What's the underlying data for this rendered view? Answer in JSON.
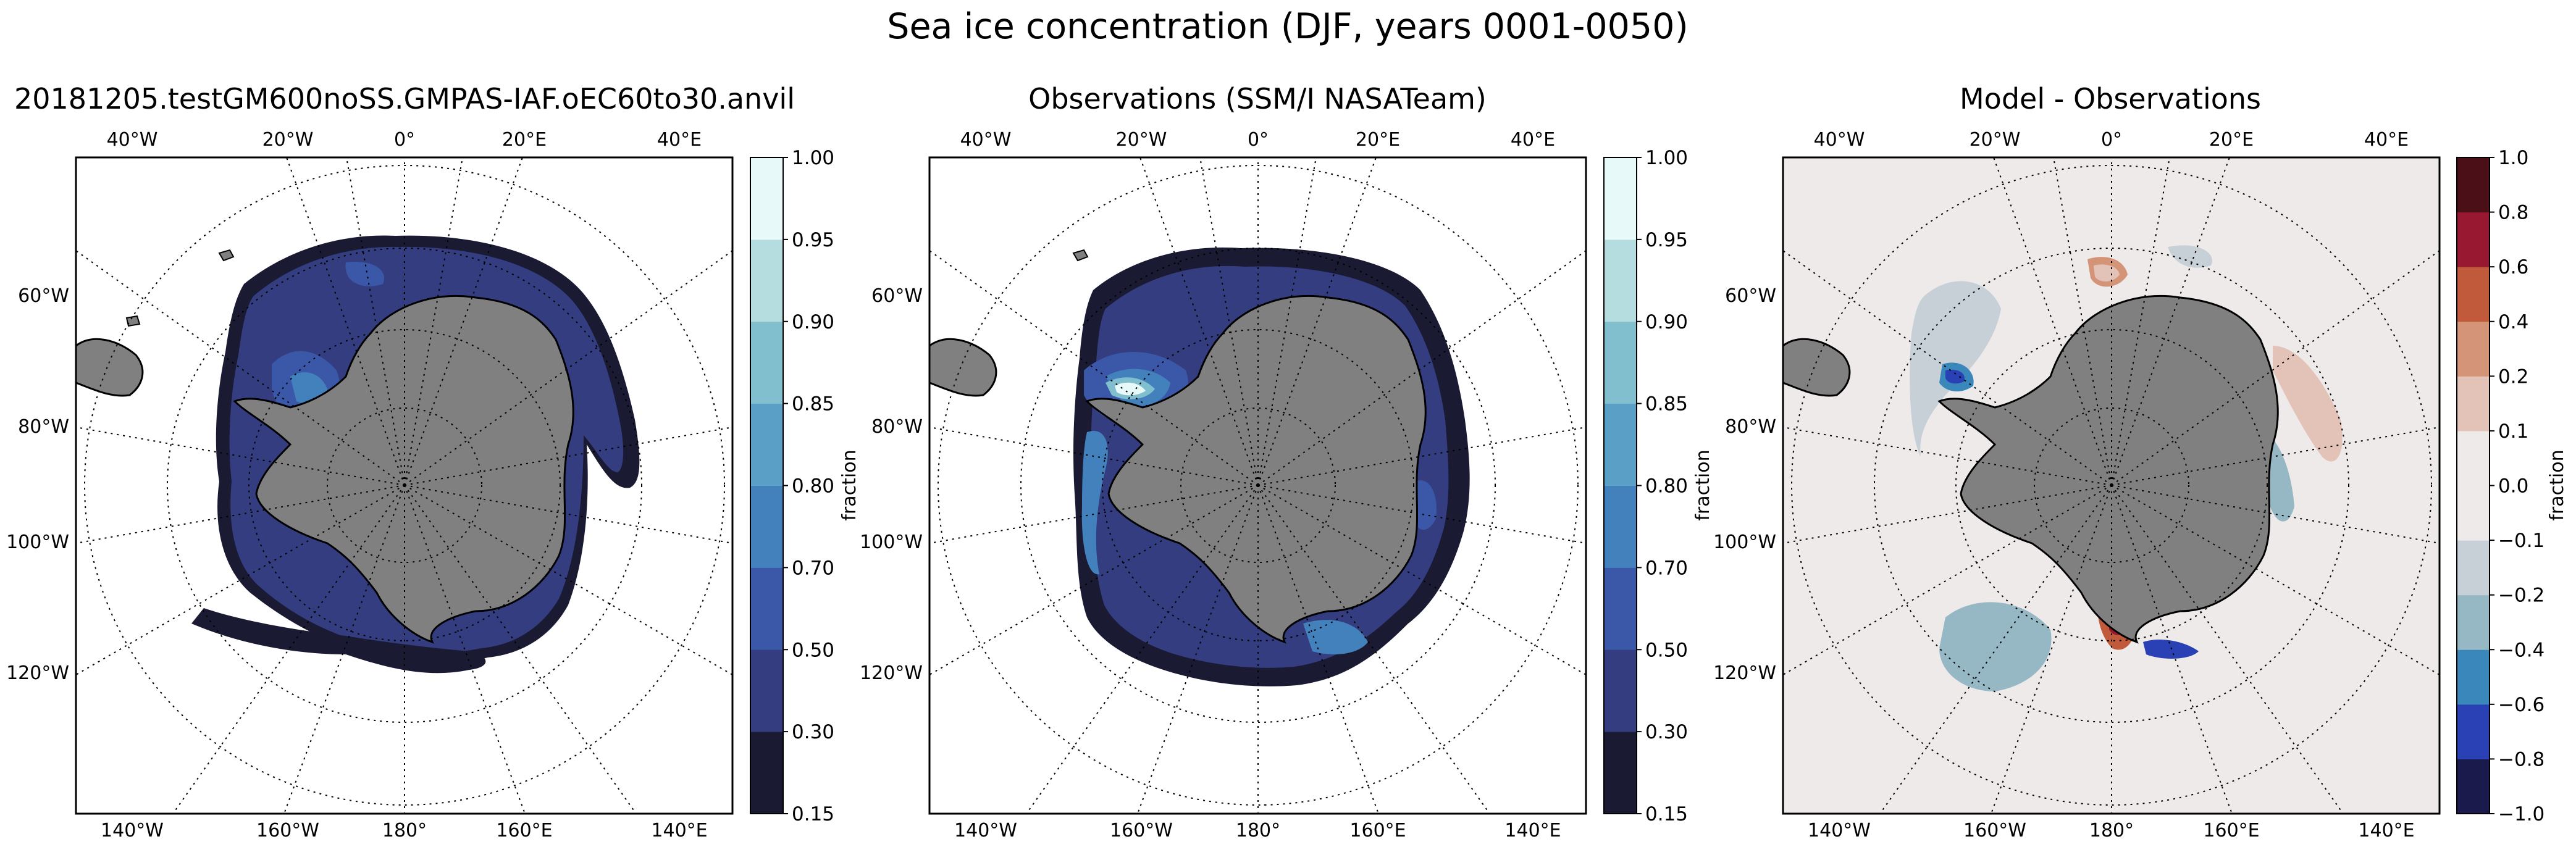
{
  "figure": {
    "title": "Sea ice concentration (DJF, years 0001-0050)"
  },
  "colors": {
    "land": "#808080",
    "ocean": "#ffffff",
    "grid": "#000000",
    "diff_background": "#efeaea"
  },
  "panels": [
    {
      "id": "model",
      "title": "20181205.testGM600noSS.GMPAS-IAF.oEC60to30.anvil",
      "kind": "concentration"
    },
    {
      "id": "obs",
      "title": "Observations (SSM/I NASATeam)",
      "kind": "concentration"
    },
    {
      "id": "diff",
      "title": "Model - Observations",
      "kind": "difference"
    }
  ],
  "map_labels": {
    "top": [
      "40°W",
      "20°W",
      "0°",
      "20°E",
      "40°E"
    ],
    "bottom": [
      "140°W",
      "160°W",
      "180°",
      "160°E",
      "140°E"
    ],
    "left": [
      "60°W",
      "80°W",
      "100°W",
      "120°W"
    ]
  },
  "colorbars": {
    "concentration": {
      "label": "fraction",
      "ticks": [
        "0.15",
        "0.30",
        "0.50",
        "0.70",
        "0.80",
        "0.85",
        "0.90",
        "0.95",
        "1.00"
      ],
      "colors": [
        "#1a1a33",
        "#333d7f",
        "#3b58a8",
        "#4381bd",
        "#5a9fc6",
        "#81bfcf",
        "#b5dde0",
        "#e8f9f9"
      ]
    },
    "difference": {
      "label": "fraction",
      "ticks": [
        "−1.0",
        "−0.8",
        "−0.6",
        "−0.4",
        "−0.2",
        "−0.1",
        "0.0",
        "0.1",
        "0.2",
        "0.4",
        "0.6",
        "0.8",
        "1.0"
      ],
      "colors": [
        "#1a1a4d",
        "#2a40b5",
        "#3a87bc",
        "#96b7c4",
        "#c6d0d6",
        "#efeaea",
        "#efeaea",
        "#e3c3b8",
        "#d49478",
        "#c05a3a",
        "#981731",
        "#4a0f17"
      ]
    }
  }
}
